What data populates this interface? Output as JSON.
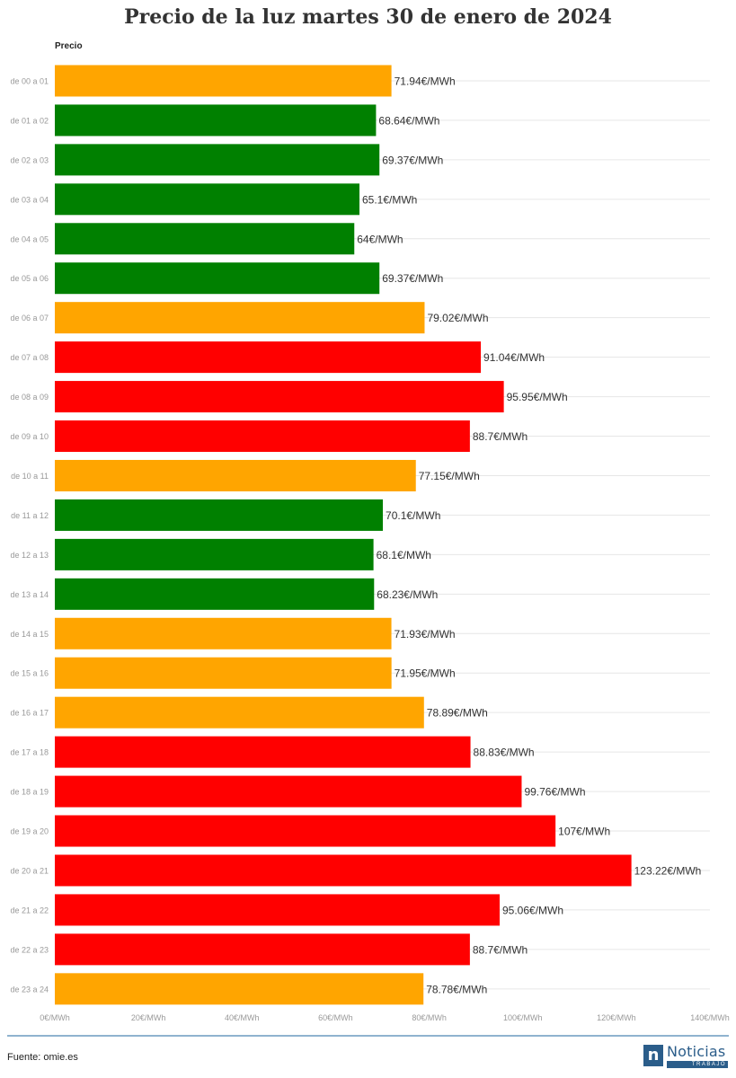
{
  "title": "Precio de la luz martes 30 de enero de 2024",
  "series_label": "Precio",
  "source": "Fuente: omie.es",
  "logo": {
    "word": "Noticias",
    "sub": "TRABAJO",
    "mark": "n"
  },
  "colors": {
    "green": "#008000",
    "orange": "#ffa500",
    "red": "#ff0000",
    "grid": "#e6e6e6",
    "axis_text": "#999999",
    "label_text": "#333333"
  },
  "chart_data": {
    "type": "bar",
    "orientation": "horizontal",
    "title": "Precio de la luz martes 30 de enero de 2024",
    "series_name": "Precio",
    "categories": [
      "de 00 a 01",
      "de 01 a 02",
      "de 02 a 03",
      "de 03 a 04",
      "de 04 a 05",
      "de 05 a 06",
      "de 06 a 07",
      "de 07 a 08",
      "de 08 a 09",
      "de 09 a 10",
      "de 10 a 11",
      "de 11 a 12",
      "de 12 a 13",
      "de 13 a 14",
      "de 14 a 15",
      "de 15 a 16",
      "de 16 a 17",
      "de 17 a 18",
      "de 18 a 19",
      "de 19 a 20",
      "de 20 a 21",
      "de 21 a 22",
      "de 22 a 23",
      "de 23 a 24"
    ],
    "values": [
      71.94,
      68.64,
      69.37,
      65.1,
      64,
      69.37,
      79.02,
      91.04,
      95.95,
      88.7,
      77.15,
      70.1,
      68.1,
      68.23,
      71.93,
      71.95,
      78.89,
      88.83,
      99.76,
      107,
      123.22,
      95.06,
      88.7,
      78.78
    ],
    "value_labels": [
      "71.94€/MWh",
      "68.64€/MWh",
      "69.37€/MWh",
      "65.1€/MWh",
      "64€/MWh",
      "69.37€/MWh",
      "79.02€/MWh",
      "91.04€/MWh",
      "95.95€/MWh",
      "88.7€/MWh",
      "77.15€/MWh",
      "70.1€/MWh",
      "68.1€/MWh",
      "68.23€/MWh",
      "71.93€/MWh",
      "71.95€/MWh",
      "78.89€/MWh",
      "88.83€/MWh",
      "99.76€/MWh",
      "107€/MWh",
      "123.22€/MWh",
      "95.06€/MWh",
      "88.7€/MWh",
      "78.78€/MWh"
    ],
    "bar_colors": [
      "orange",
      "green",
      "green",
      "green",
      "green",
      "green",
      "orange",
      "red",
      "red",
      "red",
      "orange",
      "green",
      "green",
      "green",
      "orange",
      "orange",
      "orange",
      "red",
      "red",
      "red",
      "red",
      "red",
      "red",
      "orange"
    ],
    "xlim": [
      0,
      140
    ],
    "xticks": [
      0,
      20,
      40,
      60,
      80,
      100,
      120,
      140
    ],
    "xtick_labels": [
      "0€/MWh",
      "20€/MWh",
      "40€/MWh",
      "60€/MWh",
      "80€/MWh",
      "100€/MWh",
      "120€/MWh",
      "140€/MWh"
    ],
    "grid": true
  }
}
